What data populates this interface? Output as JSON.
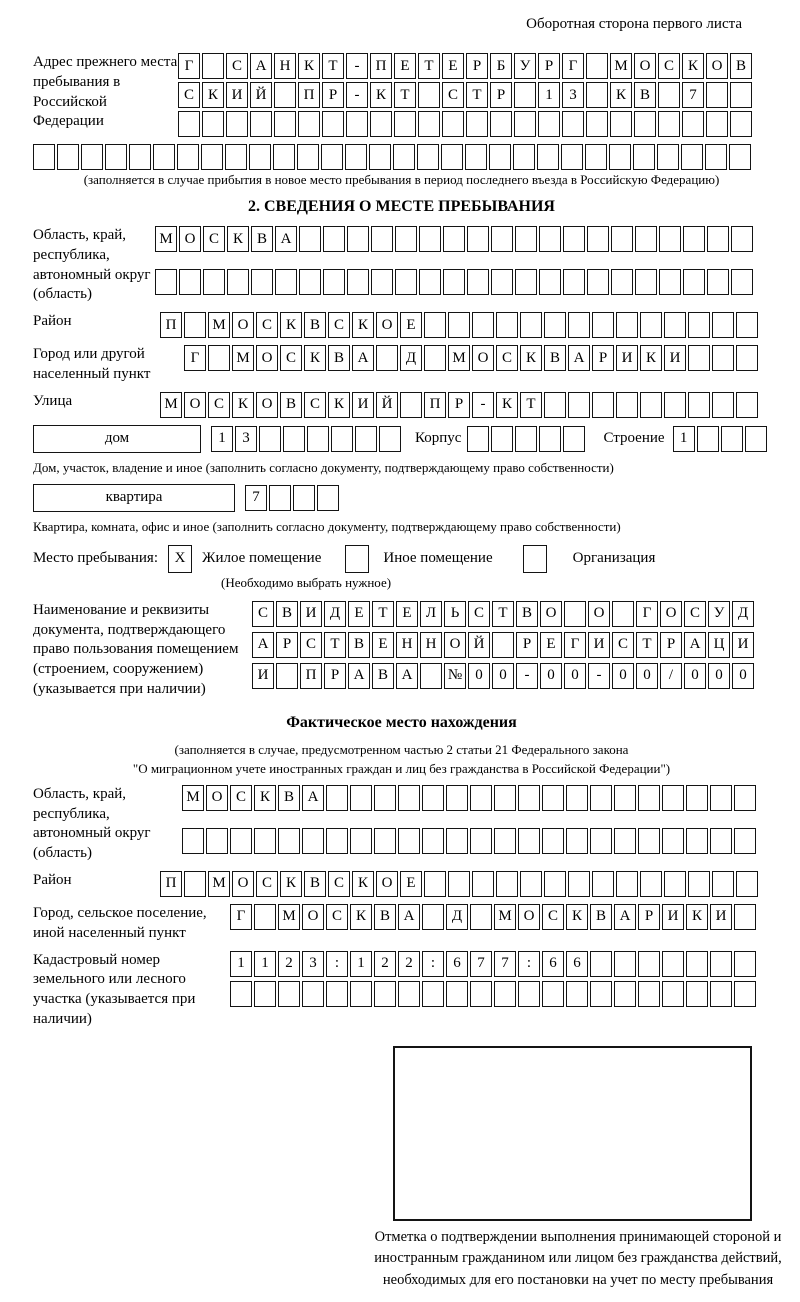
{
  "header": {
    "side_note": "Оборотная сторона первого листа"
  },
  "prev_address": {
    "label": "Адрес прежнего места пребывания в Российской Федерации",
    "rows": [
      {
        "text": "Г САНКТ-ПЕТЕРБУРГ МОСКОВ",
        "len": 24
      },
      {
        "text": "СКИЙ ПР-КТ СТР 13 КВ 7",
        "len": 24
      },
      {
        "text": "",
        "len": 24
      }
    ],
    "row4": {
      "text": "",
      "len": 30
    },
    "note": "(заполняется в случае прибытия в новое место пребывания в период последнего въезда в Российскую Федерацию)"
  },
  "section2": {
    "title": "2. СВЕДЕНИЯ О МЕСТЕ ПРЕБЫВАНИЯ",
    "region": {
      "label": "Область, край, республика, автономный округ (область)",
      "rows": [
        {
          "text": "МОСКВА",
          "len": 25
        },
        {
          "text": "",
          "len": 25
        }
      ]
    },
    "district": {
      "label": "Район",
      "row": {
        "text": "П МОСКВСКОЕ",
        "len": 25
      }
    },
    "city": {
      "label": "Город или другой населенный пункт",
      "row": {
        "text": "Г МОСКВА Д МОСКВАРИКИ",
        "len": 24
      }
    },
    "street": {
      "label": "Улица",
      "row": {
        "text": "МОСКОВСКИЙ ПР-КТ",
        "len": 25
      }
    },
    "house": {
      "box_label": "дом",
      "number": {
        "text": "13",
        "len": 8
      },
      "korpus_label": "Корпус",
      "korpus": {
        "text": "",
        "len": 5
      },
      "stroenie_label": "Строение",
      "stroenie": {
        "text": "1",
        "len": 4
      },
      "note": "Дом, участок, владение и иное (заполнить согласно документу, подтверждающему право собственности)"
    },
    "apartment": {
      "box_label": "квартира",
      "cells": {
        "text": "7",
        "len": 4
      },
      "note": "Квартира, комната, офис и иное (заполнить согласно документу, подтверждающему право собственности)"
    },
    "place_type": {
      "label": "Место пребывания:",
      "options": [
        {
          "label": "Жилое помещение",
          "checked": true,
          "mark": "X"
        },
        {
          "label": "Иное помещение",
          "checked": false,
          "mark": ""
        },
        {
          "label": "Организация",
          "checked": false,
          "mark": ""
        }
      ],
      "note": "(Необходимо выбрать нужное)"
    },
    "doc": {
      "label": "Наименование и реквизиты документа, подтверждающего право пользования помещением (строением, сооружением) (указывается при наличии)",
      "rows": [
        {
          "text": "СВИДЕТЕЛЬСТВО О ГОСУД",
          "len": 21
        },
        {
          "text": "АРСТВЕННОЙ РЕГИСТРАЦИ",
          "len": 21
        },
        {
          "text": "И ПРАВА №00-00-00/000",
          "len": 21
        }
      ]
    }
  },
  "actual_location": {
    "title": "Фактическое место нахождения",
    "note_line1": "(заполняется в случае, предусмотренном частью 2 статьи 21 Федерального закона",
    "note_line2": "\"О миграционном учете иностранных граждан и лиц без гражданства в Российской Федерации\")",
    "region": {
      "label": "Область, край, республика, автономный округ (область)",
      "rows": [
        {
          "text": "МОСКВА",
          "len": 24
        },
        {
          "text": "",
          "len": 24
        }
      ]
    },
    "district": {
      "label": "Район",
      "row": {
        "text": "П МОСКВСКОЕ",
        "len": 25
      }
    },
    "city": {
      "label": "Город, сельское поселение, иной населенный пункт",
      "row": {
        "text": "Г МОСКВА Д МОСКВАРИКИ",
        "len": 22
      }
    },
    "cadastre": {
      "label": "Кадастровый номер земельного или лесного участка (указывается при наличии)",
      "rows": [
        {
          "text": "1123:122:677:66",
          "len": 22
        },
        {
          "text": "",
          "len": 22
        }
      ]
    },
    "stamp_note": "Отметка о подтверждении выполнения принимающей стороной и иностранным гражданином или лицом без гражданства действий, необходимых для его постановки на учет по месту пребывания"
  }
}
